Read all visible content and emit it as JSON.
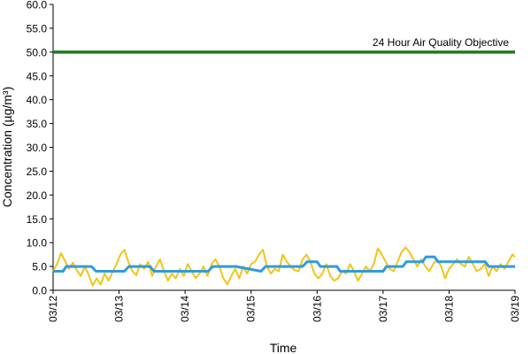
{
  "chart_data": {
    "type": "line",
    "xlabel": "Time",
    "ylabel": "Concentration (µg/m³)",
    "ylim": [
      0,
      60
    ],
    "y_ticks": [
      "0.0",
      "5.0",
      "10.0",
      "15.0",
      "20.0",
      "25.0",
      "30.0",
      "35.0",
      "40.0",
      "45.0",
      "50.0",
      "55.0",
      "60.0"
    ],
    "x_ticks": [
      "03/12",
      "03/13",
      "03/14",
      "03/15",
      "03/16",
      "03/17",
      "03/18",
      "03/19"
    ],
    "x_unit": "days from 03/12",
    "grid": false,
    "objective": {
      "value": 50,
      "label": "24 Hour Air Quality Objective",
      "color": "#1e7b1e"
    },
    "series": [
      {
        "color": "#f2c418",
        "x": [
          0,
          0.06,
          0.12,
          0.18,
          0.24,
          0.3,
          0.36,
          0.42,
          0.48,
          0.54,
          0.6,
          0.66,
          0.72,
          0.78,
          0.84,
          0.9,
          0.96,
          1.02,
          1.08,
          1.14,
          1.2,
          1.26,
          1.32,
          1.38,
          1.44,
          1.5,
          1.56,
          1.62,
          1.68,
          1.74,
          1.8,
          1.86,
          1.92,
          1.98,
          2.04,
          2.1,
          2.16,
          2.22,
          2.28,
          2.34,
          2.4,
          2.46,
          2.52,
          2.58,
          2.64,
          2.7,
          2.76,
          2.82,
          2.88,
          2.94,
          3.0,
          3.06,
          3.12,
          3.18,
          3.24,
          3.3,
          3.36,
          3.42,
          3.48,
          3.54,
          3.6,
          3.66,
          3.72,
          3.78,
          3.84,
          3.9,
          3.96,
          4.02,
          4.08,
          4.14,
          4.2,
          4.26,
          4.32,
          4.38,
          4.44,
          4.5,
          4.56,
          4.62,
          4.68,
          4.74,
          4.8,
          4.86,
          4.92,
          4.98,
          5.04,
          5.1,
          5.16,
          5.22,
          5.28,
          5.34,
          5.4,
          5.46,
          5.52,
          5.58,
          5.64,
          5.7,
          5.76,
          5.82,
          5.88,
          5.94,
          6.0,
          6.06,
          6.12,
          6.18,
          6.24,
          6.3,
          6.36,
          6.42,
          6.48,
          6.54,
          6.6,
          6.66,
          6.72,
          6.78,
          6.84,
          6.9,
          6.96,
          7.0
        ],
        "y": [
          4.0,
          5.5,
          7.8,
          6.2,
          4.5,
          5.8,
          4.2,
          3.0,
          5.0,
          3.2,
          1.0,
          2.5,
          1.2,
          3.5,
          2.0,
          3.8,
          5.5,
          7.5,
          8.5,
          6.0,
          4.0,
          3.2,
          5.5,
          4.5,
          6.0,
          3.0,
          5.0,
          6.5,
          4.0,
          2.0,
          3.5,
          2.5,
          4.5,
          3.0,
          5.5,
          4.0,
          2.5,
          3.5,
          5.0,
          3.0,
          5.5,
          6.5,
          5.0,
          2.5,
          1.2,
          3.0,
          4.5,
          2.5,
          5.0,
          3.5,
          5.5,
          6.0,
          7.5,
          8.5,
          5.0,
          3.5,
          4.5,
          4.0,
          7.5,
          6.0,
          5.0,
          4.2,
          4.0,
          6.5,
          7.5,
          6.0,
          3.5,
          2.5,
          3.5,
          5.5,
          3.0,
          2.0,
          2.5,
          4.0,
          3.5,
          5.5,
          4.0,
          2.0,
          3.5,
          5.0,
          4.0,
          5.5,
          8.8,
          7.5,
          6.0,
          4.5,
          4.0,
          6.0,
          8.0,
          9.0,
          8.0,
          6.5,
          5.0,
          6.5,
          5.0,
          4.0,
          5.5,
          6.5,
          5.0,
          2.5,
          4.5,
          5.5,
          6.5,
          5.5,
          5.0,
          7.0,
          5.5,
          4.0,
          4.5,
          5.5,
          3.0,
          5.0,
          4.0,
          5.5,
          4.5,
          6.0,
          7.5,
          7.0
        ]
      },
      {
        "color": "#2f9be0",
        "x": [
          0,
          0.15,
          0.2,
          0.58,
          0.65,
          1.08,
          1.15,
          1.47,
          1.53,
          2.35,
          2.42,
          2.77,
          3.15,
          3.22,
          3.78,
          3.85,
          4.0,
          4.05,
          4.3,
          4.35,
          5.0,
          5.05,
          5.3,
          5.35,
          5.6,
          5.65,
          5.78,
          5.83,
          5.95,
          6.0,
          6.55,
          6.6,
          7.0
        ],
        "y": [
          4.0,
          4.0,
          5.0,
          5.0,
          4.0,
          4.0,
          5.0,
          5.0,
          4.0,
          4.0,
          5.0,
          5.0,
          4.0,
          5.0,
          5.0,
          6.0,
          6.0,
          5.0,
          5.0,
          4.0,
          4.0,
          5.0,
          5.0,
          6.0,
          6.0,
          7.0,
          7.0,
          6.0,
          6.0,
          6.0,
          6.0,
          5.0,
          5.0
        ]
      }
    ]
  }
}
